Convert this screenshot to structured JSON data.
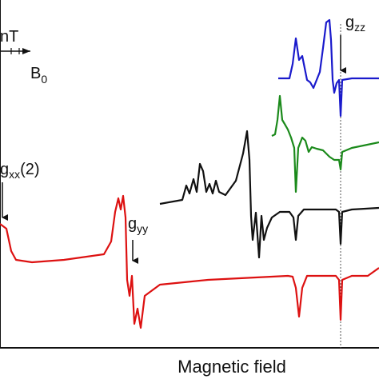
{
  "figure": {
    "b0_label": {
      "unit": "nT",
      "symbol": "B",
      "subscript": "0"
    },
    "annotations": [
      {
        "symbol": "g",
        "subscript": "zz"
      },
      {
        "symbol": "g",
        "subscript": "xx",
        "suffix": "(2)"
      },
      {
        "symbol": "g",
        "subscript": "yy"
      }
    ],
    "x_label": "Magnetic field"
  }
}
